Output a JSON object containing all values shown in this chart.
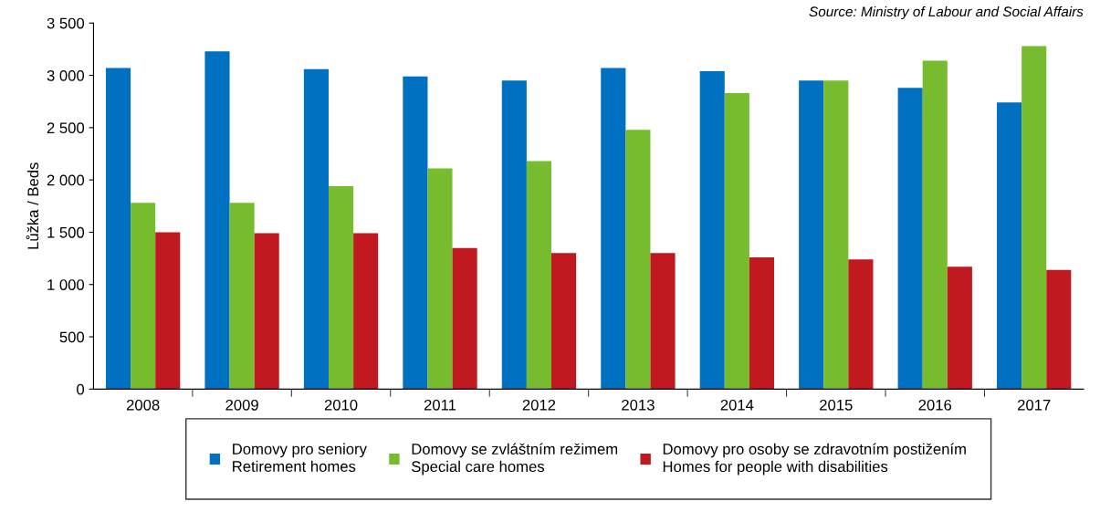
{
  "chart_data": {
    "type": "bar",
    "ylabel": "Lůžka / Beds",
    "categories": [
      "2008",
      "2009",
      "2010",
      "2011",
      "2012",
      "2013",
      "2014",
      "2015",
      "2016",
      "2017"
    ],
    "series": [
      {
        "name": "Domovy pro seniory\nRetirement homes",
        "color": "#0070c0",
        "values": [
          3070,
          3230,
          3060,
          2990,
          2950,
          3070,
          3040,
          2950,
          2880,
          2740
        ]
      },
      {
        "name": "Domovy se zvláštním režimem\nSpecial care homes",
        "color": "#77bc2e",
        "values": [
          1780,
          1780,
          1940,
          2110,
          2180,
          2480,
          2830,
          2950,
          3140,
          3280
        ]
      },
      {
        "name": "Domovy pro osoby se zdravotním postižením\nHomes for people with disabilities",
        "color": "#c0191f",
        "values": [
          1500,
          1490,
          1490,
          1350,
          1300,
          1300,
          1260,
          1240,
          1170,
          1140
        ]
      }
    ],
    "ylim": [
      0,
      3500
    ],
    "yticks": [
      0,
      500,
      {
        "value": 1000,
        "label": "1 000"
      },
      {
        "value": 1500,
        "label": "1 500"
      },
      {
        "value": 2000,
        "label": "2 000"
      },
      {
        "value": 2500,
        "label": "2 500"
      },
      {
        "value": 3000,
        "label": "3 000"
      },
      {
        "value": 3500,
        "label": "3 500"
      }
    ],
    "annotations": [
      "Source: Ministry of Labour and Social Affairs"
    ],
    "grid": false,
    "legend": "bottom"
  }
}
